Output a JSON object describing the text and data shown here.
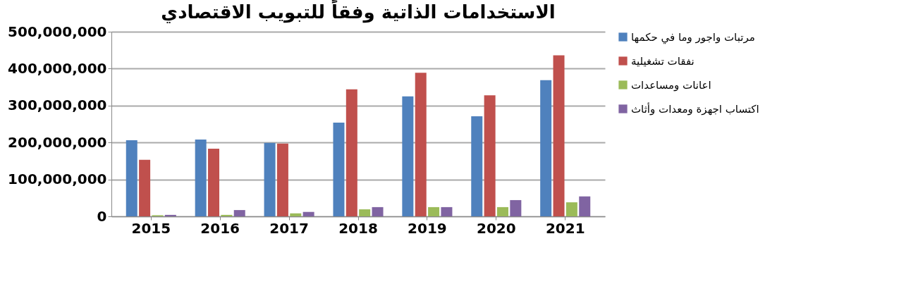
{
  "chart_data": {
    "type": "bar",
    "title": "الاستخدامات الذاتية وفقاً للتبويب الاقتصادي",
    "categories": [
      "2015",
      "2016",
      "2017",
      "2018",
      "2019",
      "2020",
      "2021"
    ],
    "series": [
      {
        "name": "مرتبات واجور وما في حكمها",
        "color": "#4f81bd",
        "values": [
          206000000,
          208000000,
          199000000,
          254000000,
          325000000,
          271000000,
          369000000
        ]
      },
      {
        "name": "نفقات تشغيلية",
        "color": "#c0504d",
        "values": [
          153000000,
          183000000,
          197000000,
          344000000,
          389000000,
          328000000,
          436000000
        ]
      },
      {
        "name": "اعانات ومساعدات",
        "color": "#9bbb59",
        "values": [
          3000000,
          4000000,
          8000000,
          19000000,
          25000000,
          25000000,
          38000000
        ]
      },
      {
        "name": "اكتساب اجهزة ومعدات وأثاث",
        "color": "#8064a2",
        "values": [
          4000000,
          17000000,
          12000000,
          25000000,
          25000000,
          44000000,
          54000000
        ]
      }
    ],
    "ylim": [
      0,
      500000000
    ],
    "yticks": [
      {
        "value": 0,
        "label": "0"
      },
      {
        "value": 100000000,
        "label": "100,000,000"
      },
      {
        "value": 200000000,
        "label": "200,000,000"
      },
      {
        "value": 300000000,
        "label": "300,000,000"
      },
      {
        "value": 400000000,
        "label": "400,000,000"
      },
      {
        "value": 500000000,
        "label": "500,000,000"
      }
    ],
    "grid": "y",
    "legend": "right"
  }
}
